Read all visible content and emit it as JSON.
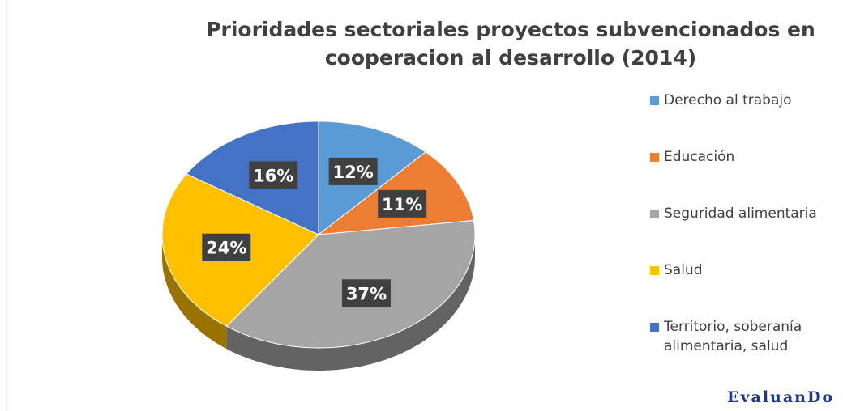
{
  "chart_data": {
    "type": "pie",
    "title": [
      "Prioridades sectoriales proyectos subvencionados  en",
      "cooperacion  al desarrollo (2014)"
    ],
    "categories": [
      "Derecho al trabajo",
      "Educación",
      "Seguridad alimentaria",
      "Salud",
      "Territorio, soberanía alimentaria, salud"
    ],
    "values": [
      12,
      11,
      37,
      24,
      16
    ],
    "value_labels": [
      "12%",
      "11%",
      "37%",
      "24%",
      "16%"
    ],
    "colors": [
      "#5b9bd5",
      "#ed7d31",
      "#a5a5a5",
      "#ffc000",
      "#4472c4"
    ],
    "legend": "right"
  },
  "watermark": "EvaluanDo"
}
